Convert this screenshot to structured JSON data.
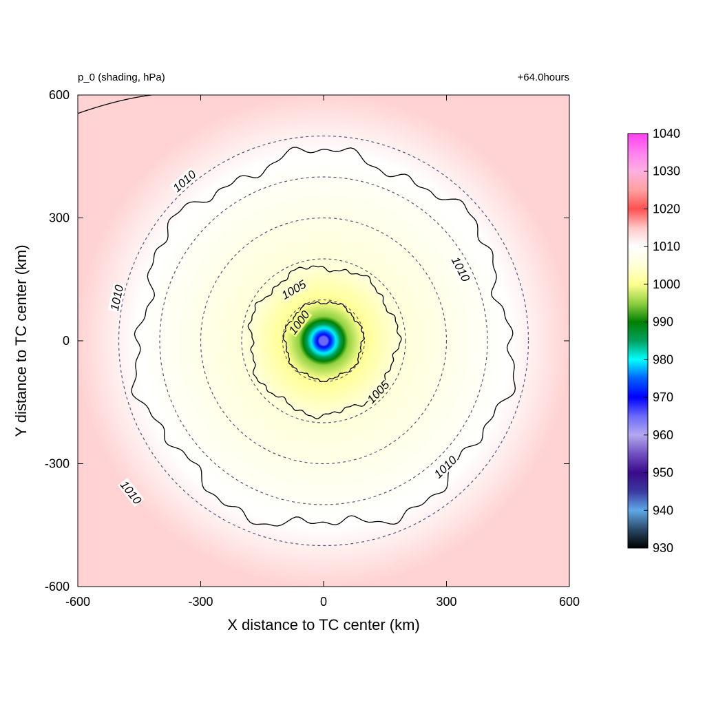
{
  "chart_data": {
    "type": "heatmap",
    "title_left": "p_0 (shading, hPa)",
    "title_right": "+64.0hours",
    "xlabel": "X distance to TC center (km)",
    "ylabel": "Y distance to TC center (km)",
    "xlim": [
      -600,
      600
    ],
    "ylim": [
      -600,
      600
    ],
    "xticks": [
      "-600",
      "-300",
      "0",
      "300",
      "600"
    ],
    "yticks": [
      "600",
      "300",
      "0",
      "-300",
      "-600"
    ],
    "center_pressure": 965,
    "colorbar": {
      "min": 930,
      "max": 1040,
      "ticks": [
        "1040",
        "1030",
        "1020",
        "1010",
        "1000",
        "990",
        "980",
        "970",
        "960",
        "950",
        "940",
        "930"
      ],
      "stops": [
        {
          "value": 930,
          "color": "#000000"
        },
        {
          "value": 935,
          "color": "#2a4a6a"
        },
        {
          "value": 940,
          "color": "#5fa8e8"
        },
        {
          "value": 945,
          "color": "#3a3aa0"
        },
        {
          "value": 950,
          "color": "#3a0a8a"
        },
        {
          "value": 955,
          "color": "#7050c0"
        },
        {
          "value": 960,
          "color": "#b4a8f0"
        },
        {
          "value": 965,
          "color": "#6a6af8"
        },
        {
          "value": 970,
          "color": "#0000ff"
        },
        {
          "value": 975,
          "color": "#0060ff"
        },
        {
          "value": 980,
          "color": "#00ffff"
        },
        {
          "value": 985,
          "color": "#00a060"
        },
        {
          "value": 990,
          "color": "#008000"
        },
        {
          "value": 995,
          "color": "#90d040"
        },
        {
          "value": 1000,
          "color": "#ffff90"
        },
        {
          "value": 1005,
          "color": "#ffffd8"
        },
        {
          "value": 1010,
          "color": "#ffffff"
        },
        {
          "value": 1015,
          "color": "#ffc8c8"
        },
        {
          "value": 1020,
          "color": "#ff5050"
        },
        {
          "value": 1025,
          "color": "#ffa0a0"
        },
        {
          "value": 1030,
          "color": "#ffb0e0"
        },
        {
          "value": 1035,
          "color": "#ff80f0"
        },
        {
          "value": 1040,
          "color": "#ff40f0"
        }
      ]
    },
    "range_circles_km": [
      100,
      200,
      300,
      400,
      500
    ],
    "contours": [
      {
        "level": 1000,
        "label": "1000",
        "radius_km": 95,
        "label_at": [
          -60,
          45
        ]
      },
      {
        "level": 1005,
        "label": "1005",
        "radius_km": 180,
        "label_at": [
          -73,
          125
        ]
      },
      {
        "level": 1005,
        "label": "1005",
        "radius_km": 180,
        "label_at": [
          133,
          -125
        ]
      },
      {
        "level": 1010,
        "label": "1010",
        "radius_km": 455,
        "label_at": [
          -340,
          390
        ]
      },
      {
        "level": 1010,
        "label": "1010",
        "radius_km": 455,
        "label_at": [
          -505,
          105
        ]
      },
      {
        "level": 1010,
        "label": "1010",
        "radius_km": 455,
        "label_at": [
          335,
          175
        ]
      },
      {
        "level": 1010,
        "label": "1010",
        "radius_km": 455,
        "label_at": [
          297,
          -308
        ]
      },
      {
        "level": 1010,
        "label": "1010",
        "radius_km": 455,
        "label_at": [
          -470,
          -370
        ]
      }
    ]
  }
}
